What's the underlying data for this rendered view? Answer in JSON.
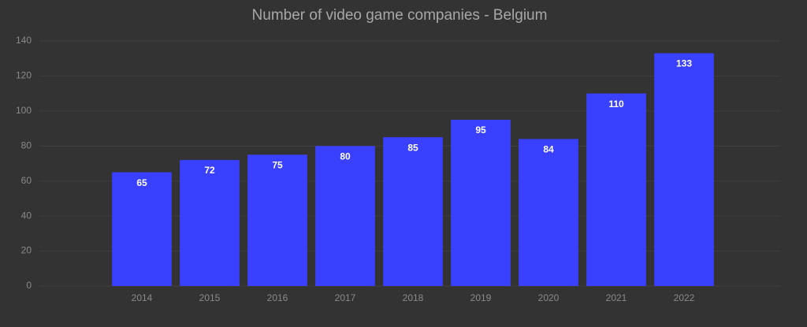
{
  "chart_data": {
    "type": "bar",
    "title": "Number of video game companies - Belgium",
    "categories": [
      "2014",
      "2015",
      "2016",
      "2017",
      "2018",
      "2019",
      "2020",
      "2021",
      "2022"
    ],
    "values": [
      65,
      72,
      75,
      80,
      85,
      95,
      84,
      110,
      133
    ],
    "color": "#3a40ff",
    "ylim": [
      0,
      140
    ],
    "yticks": [
      0,
      20,
      40,
      60,
      80,
      100,
      120,
      140
    ],
    "grid": true
  }
}
